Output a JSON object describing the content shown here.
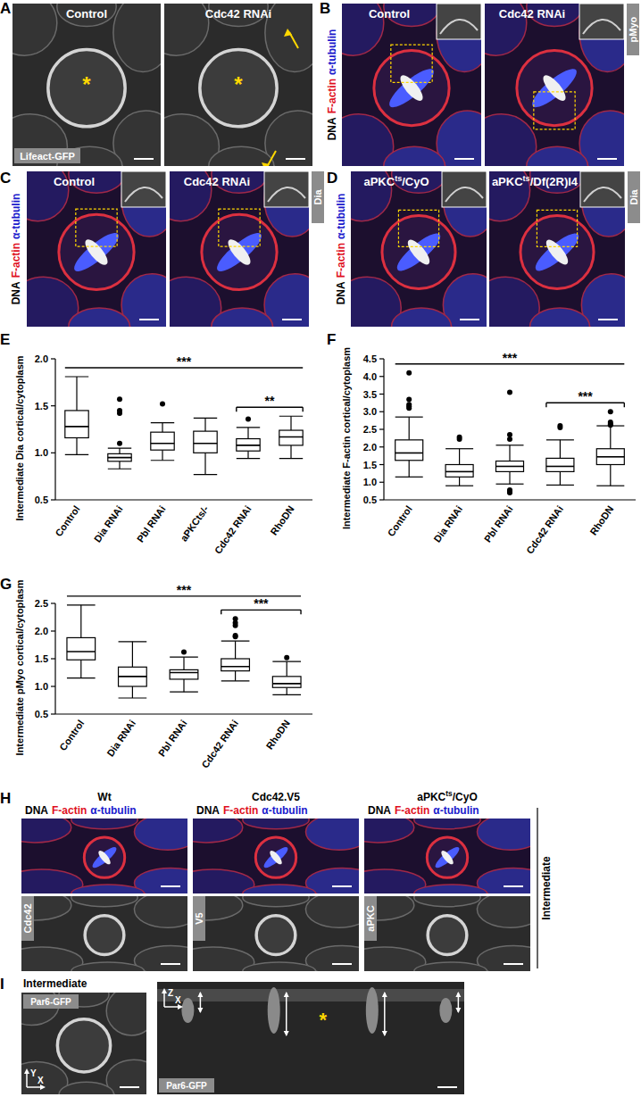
{
  "figure": {
    "A": {
      "label": "A",
      "titles": [
        "Control",
        "Cdc42 RNAi"
      ],
      "channel": "Lifeact-GFP",
      "asterisk": "*"
    },
    "B": {
      "label": "B",
      "titles": [
        "Control",
        "Cdc42 RNAi"
      ],
      "stain": [
        "DNA",
        "F-actin",
        "α-tubulin"
      ],
      "inset": "pMyo"
    },
    "C": {
      "label": "C",
      "titles": [
        "Control",
        "Cdc42 RNAi"
      ],
      "stain": [
        "DNA",
        "F-actin",
        "α-tubulin"
      ],
      "inset": "Dia"
    },
    "D": {
      "label": "D",
      "titles": [
        {
          "text": "aPKC",
          "sup": "ts",
          "after": "/CyO"
        },
        {
          "text": "aPKC",
          "sup": "ts",
          "after": "/Df(2R)l4"
        }
      ],
      "stain": [
        "DNA",
        "F-actin",
        "α-tubulin"
      ],
      "inset": "Dia"
    },
    "H": {
      "label": "H",
      "panels": [
        {
          "title": "Wt",
          "channel": "Cdc42"
        },
        {
          "title": "Cdc42.V5",
          "channel": "V5"
        },
        {
          "title": {
            "text": "aPKC",
            "sup": "ts",
            "after": "/CyO"
          },
          "channel": "aPKC"
        }
      ],
      "stain": [
        "DNA",
        "F-actin",
        "α-tubulin"
      ],
      "stage": "Intermediate"
    },
    "I": {
      "label": "I",
      "stage": "Intermediate",
      "channel": "Par6-GFP",
      "axes_xy": [
        "Y",
        "X"
      ],
      "axes_xz": [
        "Z",
        "X"
      ],
      "asterisk": "*"
    }
  },
  "chart_data": [
    {
      "type": "box",
      "panel": "E",
      "y_label": "Intermediate Dia cortical/cytoplasm",
      "categories": [
        "Control",
        "Dia RNAi",
        "Pbl RNAi",
        "aPKCts/-",
        "Cdc42 RNAi",
        "RhoDN"
      ],
      "boxes": [
        {
          "low": 0.98,
          "q1": 1.16,
          "median": 1.28,
          "q3": 1.45,
          "high": 1.81,
          "outliers": []
        },
        {
          "low": 0.83,
          "q1": 0.91,
          "median": 0.95,
          "q3": 0.99,
          "high": 1.05,
          "outliers": [
            1.1,
            1.42,
            1.45,
            1.57
          ]
        },
        {
          "low": 0.92,
          "q1": 1.03,
          "median": 1.1,
          "q3": 1.22,
          "high": 1.32,
          "outliers": [
            1.52
          ]
        },
        {
          "low": 0.77,
          "q1": 1.0,
          "median": 1.1,
          "q3": 1.23,
          "high": 1.37,
          "outliers": []
        },
        {
          "low": 0.94,
          "q1": 1.02,
          "median": 1.08,
          "q3": 1.15,
          "high": 1.27,
          "outliers": [
            1.36
          ]
        },
        {
          "low": 0.94,
          "q1": 1.08,
          "median": 1.17,
          "q3": 1.24,
          "high": 1.39,
          "outliers": []
        }
      ],
      "ylim": [
        0.5,
        2.0
      ],
      "yticks": [
        0.5,
        {
          "value": 1,
          "label": "1.0"
        },
        1.5,
        {
          "value": 2,
          "label": "2.0"
        }
      ],
      "annotations": [
        {
          "text": "***",
          "between": [
            "Control",
            "RhoDN"
          ]
        },
        {
          "text": "**",
          "between": [
            "Cdc42 RNAi",
            "RhoDN"
          ]
        }
      ]
    },
    {
      "type": "box",
      "panel": "F",
      "y_label": "Intermediate F-actin cortical/cytoplasm",
      "categories": [
        "Control",
        "Dia RNAi",
        "Pbl RNAi",
        "Cdc42 RNAi",
        "RhoDN"
      ],
      "boxes": [
        {
          "low": 1.15,
          "q1": 1.62,
          "median": 1.83,
          "q3": 2.2,
          "high": 2.85,
          "outliers": [
            3.1,
            3.15,
            3.2,
            3.35,
            4.1
          ]
        },
        {
          "low": 0.9,
          "q1": 1.15,
          "median": 1.3,
          "q3": 1.5,
          "high": 1.95,
          "outliers": [
            2.22,
            2.28
          ]
        },
        {
          "low": 0.95,
          "q1": 1.3,
          "median": 1.45,
          "q3": 1.6,
          "high": 2.05,
          "outliers": [
            2.22,
            2.35,
            3.55,
            0.7,
            0.73,
            0.75,
            0.78
          ]
        },
        {
          "low": 0.92,
          "q1": 1.3,
          "median": 1.45,
          "q3": 1.68,
          "high": 2.2,
          "outliers": [
            2.55,
            2.6
          ]
        },
        {
          "low": 0.9,
          "q1": 1.5,
          "median": 1.72,
          "q3": 1.95,
          "high": 2.6,
          "outliers": [
            2.62,
            2.65,
            2.7,
            3.0
          ]
        }
      ],
      "ylim": [
        0.5,
        4.5
      ],
      "yticks": [
        0.5,
        {
          "value": 1,
          "label": "1.0"
        },
        1.5,
        {
          "value": 2,
          "label": "2.0"
        },
        2.5,
        {
          "value": 3,
          "label": "3.0"
        },
        3.5,
        {
          "value": 4,
          "label": "4.0"
        },
        4.5
      ],
      "annotations": [
        {
          "text": "***",
          "between": [
            "Control",
            "RhoDN"
          ]
        },
        {
          "text": "***",
          "between": [
            "Cdc42 RNAi",
            "RhoDN"
          ]
        }
      ]
    },
    {
      "type": "box",
      "panel": "G",
      "y_label": "Intermediate pMyo cortical/cytoplasm",
      "categories": [
        "Control",
        "Dia RNAi",
        "Pbl RNAi",
        "Cdc42 RNAi",
        "RhoDN"
      ],
      "boxes": [
        {
          "low": 1.15,
          "q1": 1.48,
          "median": 1.63,
          "q3": 1.88,
          "high": 2.47,
          "outliers": []
        },
        {
          "low": 0.79,
          "q1": 1.0,
          "median": 1.18,
          "q3": 1.35,
          "high": 1.81,
          "outliers": []
        },
        {
          "low": 0.9,
          "q1": 1.13,
          "median": 1.25,
          "q3": 1.3,
          "high": 1.53,
          "outliers": [
            1.62
          ]
        },
        {
          "low": 1.1,
          "q1": 1.28,
          "median": 1.36,
          "q3": 1.5,
          "high": 1.82,
          "outliers": [
            1.9,
            1.92,
            2.1,
            2.15,
            2.22
          ]
        },
        {
          "low": 0.85,
          "q1": 0.98,
          "median": 1.05,
          "q3": 1.18,
          "high": 1.45,
          "outliers": [
            1.52
          ]
        }
      ],
      "ylim": [
        0.5,
        2.5
      ],
      "yticks": [
        0.5,
        {
          "value": 1,
          "label": "1.0"
        },
        1.5,
        {
          "value": 2,
          "label": "2.0"
        },
        2.5
      ],
      "annotations": [
        {
          "text": "***",
          "between": [
            "Control",
            "RhoDN"
          ]
        },
        {
          "text": "***",
          "between": [
            "Cdc42 RNAi",
            "RhoDN"
          ]
        }
      ]
    }
  ]
}
